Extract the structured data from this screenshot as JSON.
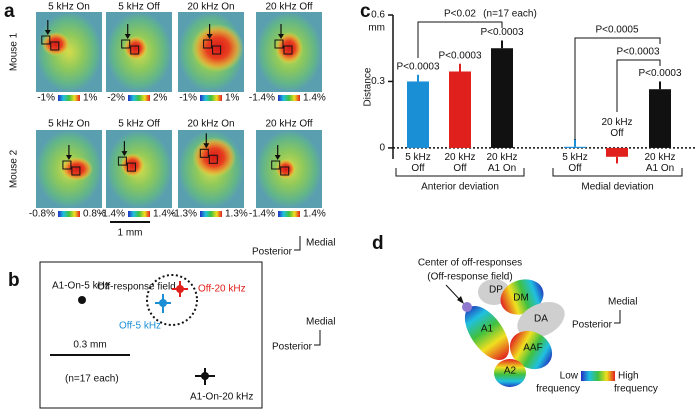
{
  "panel_labels": [
    "a",
    "b",
    "c",
    "d"
  ],
  "panel_a": {
    "rows": [
      {
        "label": "Mouse 1",
        "titles": [
          "5 kHz On",
          "5 kHz Off",
          "20 kHz On",
          "20 kHz Off"
        ],
        "colorbars": [
          [
            "-1%",
            "1%"
          ],
          [
            "-2%",
            "2%"
          ],
          [
            "-1%",
            "1%"
          ],
          [
            "-1.4%",
            "1.4%"
          ]
        ]
      },
      {
        "label": "Mouse 2",
        "titles": [
          "5 kHz On",
          "5 kHz Off",
          "20 kHz On",
          "20 kHz Off"
        ],
        "colorbars": [
          [
            "-0.8%",
            "0.8%"
          ],
          [
            "-1.4%",
            "1.4%"
          ],
          [
            "-1.3%",
            "1.3%"
          ],
          [
            "-1.4%",
            "1.4%"
          ]
        ]
      }
    ],
    "scale_bar": "1 mm",
    "posterior": "Posterior",
    "medial": "Medial"
  },
  "panel_b": {
    "title": "Off-response field",
    "points": [
      "A1-On-5 kHz",
      "Off-20 kHz",
      "Off-5 kHz",
      "A1-On-20 kHz"
    ],
    "scale_bar": "0.3 mm",
    "note": "(n=17 each)",
    "medial": "Medial",
    "posterior": "Posterior"
  },
  "panel_d": {
    "callout": [
      "Center of off-responses",
      "(Off-response field)"
    ],
    "fields": [
      "DP",
      "DM",
      "DA",
      "A1",
      "AAF",
      "A2"
    ],
    "legend_low": [
      "Low",
      "frequency"
    ],
    "legend_high": [
      "High",
      "frequency"
    ],
    "medial": "Medial",
    "posterior": "Posterior"
  },
  "chart_data": {
    "type": "bar",
    "ylabel": "Distance",
    "yunit": "mm",
    "note": "(n=17 each)",
    "ylim": [
      -0.05,
      0.6
    ],
    "yticks": [
      0,
      0.3,
      0.6
    ],
    "groups": [
      {
        "name": "Anterior deviation",
        "categories": [
          "5 kHz Off",
          "20 kHz Off",
          "20 kHz A1 On"
        ],
        "values": [
          0.3,
          0.345,
          0.45
        ],
        "errors": [
          0.03,
          0.035,
          0.035
        ],
        "colors": [
          "#1b8fd6",
          "#e0201c",
          "#111111"
        ],
        "significance": [
          "P<0.0003",
          "P<0.0003",
          "P<0.0003"
        ]
      },
      {
        "name": "Medial deviation",
        "categories": [
          "5 kHz Off",
          "20 kHz Off",
          "20 kHz A1 On"
        ],
        "values": [
          0.005,
          -0.04,
          0.265
        ],
        "errors": [
          0.035,
          0.03,
          0.035
        ],
        "colors": [
          "#1b8fd6",
          "#e0201c",
          "#111111"
        ],
        "significance": [
          "P<0.0003"
        ]
      }
    ],
    "comparisons": [
      "P<0.02",
      "P<0.0005",
      "P<0.0003"
    ]
  }
}
